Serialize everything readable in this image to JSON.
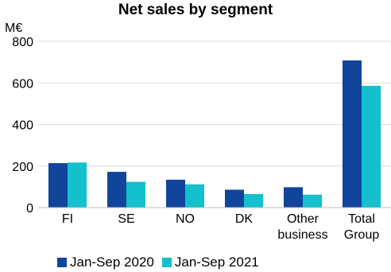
{
  "chart_data": {
    "type": "bar",
    "title": "Net sales by segment",
    "ylabel": "M€",
    "xlabel": "",
    "ylim": [
      0,
      800
    ],
    "yticks": [
      0,
      200,
      400,
      600,
      800
    ],
    "grid": true,
    "legend_position": "bottom",
    "categories": [
      "FI",
      "SE",
      "NO",
      "DK",
      "Other business",
      "Total Group"
    ],
    "category_lines": [
      [
        "FI"
      ],
      [
        "SE"
      ],
      [
        "NO"
      ],
      [
        "DK"
      ],
      [
        "Other",
        "business"
      ],
      [
        "Total",
        "Group"
      ]
    ],
    "series": [
      {
        "name": "Jan-Sep 2020",
        "color": "#11449b",
        "values": [
          214,
          172,
          134,
          86,
          98,
          708
        ]
      },
      {
        "name": "Jan-Sep 2021",
        "color": "#13c0cb",
        "values": [
          217,
          124,
          112,
          65,
          62,
          586
        ]
      }
    ]
  }
}
